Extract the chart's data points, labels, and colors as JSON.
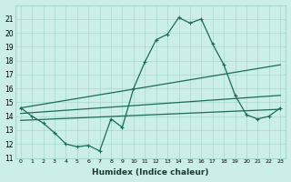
{
  "xlabel": "Humidex (Indice chaleur)",
  "xlim": [
    -0.5,
    23.5
  ],
  "ylim": [
    11,
    22
  ],
  "yticks": [
    11,
    12,
    13,
    14,
    15,
    16,
    17,
    18,
    19,
    20,
    21
  ],
  "xticks": [
    0,
    1,
    2,
    3,
    4,
    5,
    6,
    7,
    8,
    9,
    10,
    11,
    12,
    13,
    14,
    15,
    16,
    17,
    18,
    19,
    20,
    21,
    22,
    23
  ],
  "xtick_labels": [
    "0",
    "1",
    "2",
    "3",
    "4",
    "5",
    "6",
    "7",
    "8",
    "9",
    "10",
    "11",
    "12",
    "13",
    "14",
    "15",
    "16",
    "17",
    "18",
    "19",
    "20",
    "21",
    "22",
    "23"
  ],
  "background_color": "#cbeee8",
  "grid_color": "#a8d8cf",
  "line_color": "#1a6b5a",
  "line1_x": [
    0,
    1,
    2,
    3,
    4,
    5,
    6,
    7,
    8,
    9,
    10,
    11,
    12,
    13,
    14,
    15,
    16,
    17,
    18,
    19,
    20,
    21,
    22,
    23
  ],
  "line1_y": [
    14.6,
    14.0,
    13.5,
    12.8,
    12.0,
    11.8,
    11.9,
    11.5,
    13.8,
    13.2,
    16.0,
    17.9,
    19.5,
    19.9,
    21.1,
    20.7,
    21.0,
    19.2,
    17.7,
    15.5,
    14.1,
    13.8,
    14.0,
    14.6
  ],
  "line2_x": [
    0,
    23
  ],
  "line2_y": [
    14.6,
    17.7
  ],
  "line3_x": [
    0,
    23
  ],
  "line3_y": [
    14.2,
    15.5
  ],
  "line4_x": [
    0,
    23
  ],
  "line4_y": [
    13.7,
    14.5
  ],
  "marker": "+",
  "markersize": 3,
  "linewidth": 0.9
}
